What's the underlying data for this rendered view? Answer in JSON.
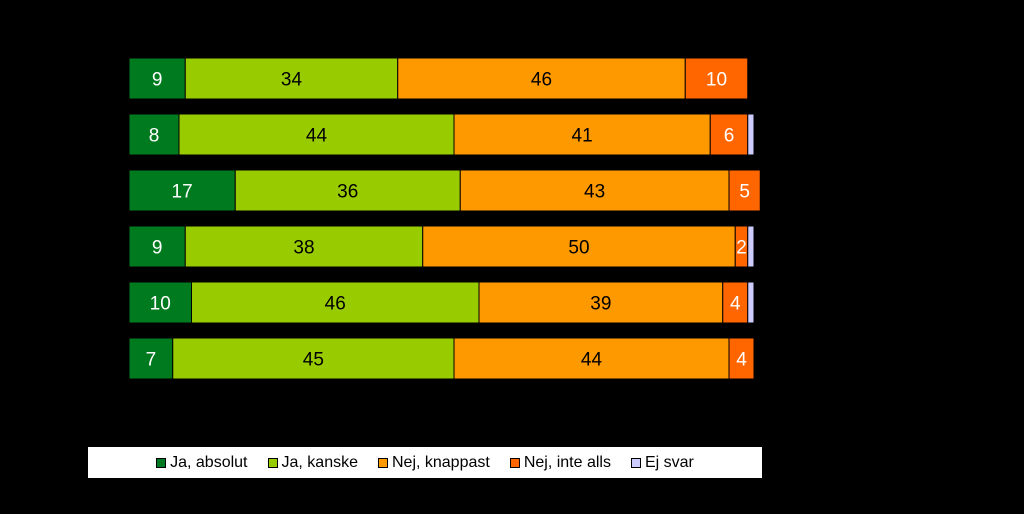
{
  "chart_data": {
    "type": "bar",
    "orientation": "horizontal",
    "stacked": true,
    "categories": [
      "",
      "",
      "",
      "",
      "",
      ""
    ],
    "series": [
      {
        "name": "Ja, absolut",
        "color": "#007a1e",
        "values": [
          9,
          8,
          17,
          9,
          10,
          7
        ]
      },
      {
        "name": "Ja, kanske",
        "color": "#99cc00",
        "values": [
          34,
          44,
          36,
          38,
          46,
          45
        ]
      },
      {
        "name": "Nej, knappast",
        "color": "#ff9900",
        "values": [
          46,
          41,
          43,
          50,
          39,
          44
        ]
      },
      {
        "name": "Nej, inte alls",
        "color": "#ff6600",
        "values": [
          10,
          6,
          5,
          2,
          4,
          4
        ]
      },
      {
        "name": "Ej svar",
        "color": "#ccccff",
        "values": [
          0,
          1,
          0,
          1,
          1,
          0
        ]
      }
    ],
    "xlim": [
      0,
      100
    ],
    "grid": false,
    "legend_position": "bottom"
  }
}
